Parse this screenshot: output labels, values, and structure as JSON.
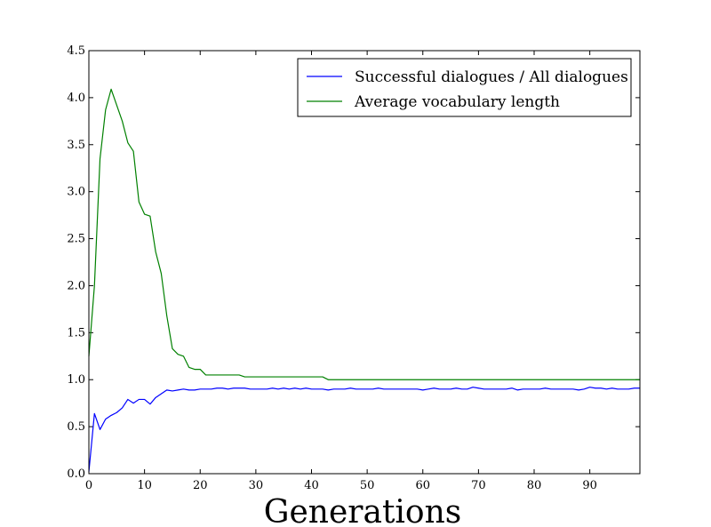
{
  "chart_data": {
    "type": "line",
    "xlabel": "Generations",
    "ylabel": "",
    "xlim": [
      0,
      99
    ],
    "ylim": [
      0,
      4.5
    ],
    "xticks": [
      "0",
      "10",
      "20",
      "30",
      "40",
      "50",
      "60",
      "70",
      "80",
      "90"
    ],
    "yticks": [
      "0.0",
      "0.5",
      "1.0",
      "1.5",
      "2.0",
      "2.5",
      "3.0",
      "3.5",
      "4.0",
      "4.5"
    ],
    "grid": false,
    "legend_position": "top-right",
    "series": [
      {
        "name": "Successful dialogues / All dialogues",
        "color": "#0000ff",
        "x": [
          0,
          1,
          2,
          3,
          4,
          5,
          6,
          7,
          8,
          9,
          10,
          11,
          12,
          13,
          14,
          15,
          16,
          17,
          18,
          19,
          20,
          21,
          22,
          23,
          24,
          25,
          26,
          27,
          28,
          29,
          30,
          31,
          32,
          33,
          34,
          35,
          36,
          37,
          38,
          39,
          40,
          41,
          42,
          43,
          44,
          45,
          46,
          47,
          48,
          49,
          50,
          51,
          52,
          53,
          54,
          55,
          56,
          57,
          58,
          59,
          60,
          61,
          62,
          63,
          64,
          65,
          66,
          67,
          68,
          69,
          70,
          71,
          72,
          73,
          74,
          75,
          76,
          77,
          78,
          79,
          80,
          81,
          82,
          83,
          84,
          85,
          86,
          87,
          88,
          89,
          90,
          91,
          92,
          93,
          94,
          95,
          96,
          97,
          98,
          99
        ],
        "values": [
          0.02,
          0.64,
          0.47,
          0.58,
          0.62,
          0.65,
          0.7,
          0.79,
          0.75,
          0.79,
          0.79,
          0.74,
          0.81,
          0.85,
          0.89,
          0.88,
          0.89,
          0.9,
          0.89,
          0.89,
          0.9,
          0.9,
          0.9,
          0.91,
          0.91,
          0.9,
          0.91,
          0.91,
          0.91,
          0.9,
          0.9,
          0.9,
          0.9,
          0.91,
          0.9,
          0.91,
          0.9,
          0.91,
          0.9,
          0.91,
          0.9,
          0.9,
          0.9,
          0.89,
          0.9,
          0.9,
          0.9,
          0.91,
          0.9,
          0.9,
          0.9,
          0.9,
          0.91,
          0.9,
          0.9,
          0.9,
          0.9,
          0.9,
          0.9,
          0.9,
          0.89,
          0.9,
          0.91,
          0.9,
          0.9,
          0.9,
          0.91,
          0.9,
          0.9,
          0.92,
          0.91,
          0.9,
          0.9,
          0.9,
          0.9,
          0.9,
          0.91,
          0.89,
          0.9,
          0.9,
          0.9,
          0.9,
          0.91,
          0.9,
          0.9,
          0.9,
          0.9,
          0.9,
          0.89,
          0.9,
          0.92,
          0.91,
          0.91,
          0.9,
          0.91,
          0.9,
          0.9,
          0.9,
          0.91,
          0.91
        ]
      },
      {
        "name": "Average vocabulary length",
        "color": "#008000",
        "x": [
          0,
          1,
          2,
          3,
          4,
          5,
          6,
          7,
          8,
          9,
          10,
          11,
          12,
          13,
          14,
          15,
          16,
          17,
          18,
          19,
          20,
          21,
          22,
          23,
          24,
          25,
          26,
          27,
          28,
          29,
          30,
          31,
          32,
          33,
          34,
          35,
          36,
          37,
          38,
          39,
          40,
          41,
          42,
          43,
          44,
          45,
          46,
          47,
          48,
          49,
          50,
          51,
          52,
          53,
          54,
          55,
          56,
          57,
          58,
          59,
          60,
          61,
          62,
          63,
          64,
          65,
          66,
          67,
          68,
          69,
          70,
          71,
          72,
          73,
          74,
          75,
          76,
          77,
          78,
          79,
          80,
          81,
          82,
          83,
          84,
          85,
          86,
          87,
          88,
          89,
          90,
          91,
          92,
          93,
          94,
          95,
          96,
          97,
          98,
          99
        ],
        "values": [
          1.25,
          2.0,
          3.35,
          3.87,
          4.09,
          3.92,
          3.75,
          3.52,
          3.43,
          2.89,
          2.76,
          2.74,
          2.36,
          2.13,
          1.68,
          1.33,
          1.27,
          1.25,
          1.13,
          1.11,
          1.11,
          1.05,
          1.05,
          1.05,
          1.05,
          1.05,
          1.05,
          1.05,
          1.03,
          1.03,
          1.03,
          1.03,
          1.03,
          1.03,
          1.03,
          1.03,
          1.03,
          1.03,
          1.03,
          1.03,
          1.03,
          1.03,
          1.03,
          1.0,
          1.0,
          1.0,
          1.0,
          1.0,
          1.0,
          1.0,
          1.0,
          1.0,
          1.0,
          1.0,
          1.0,
          1.0,
          1.0,
          1.0,
          1.0,
          1.0,
          1.0,
          1.0,
          1.0,
          1.0,
          1.0,
          1.0,
          1.0,
          1.0,
          1.0,
          1.0,
          1.0,
          1.0,
          1.0,
          1.0,
          1.0,
          1.0,
          1.0,
          1.0,
          1.0,
          1.0,
          1.0,
          1.0,
          1.0,
          1.0,
          1.0,
          1.0,
          1.0,
          1.0,
          1.0,
          1.0,
          1.0,
          1.0,
          1.0,
          1.0,
          1.0,
          1.0,
          1.0,
          1.0,
          1.0,
          1.0
        ]
      }
    ]
  }
}
